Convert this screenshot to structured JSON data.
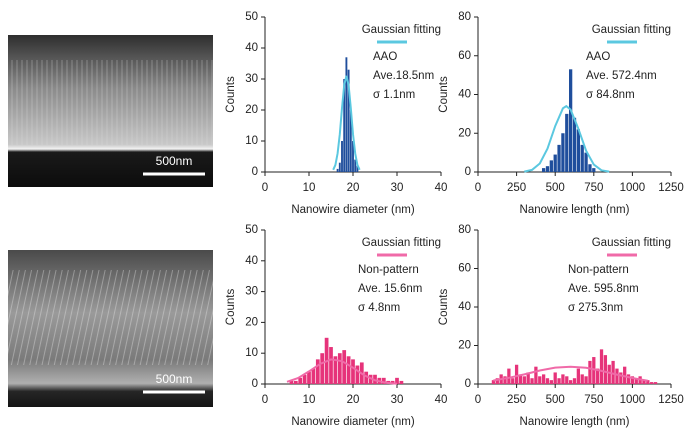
{
  "images": [
    {
      "scale_bar": "500nm"
    },
    {
      "scale_bar": "500nm"
    }
  ],
  "chart_data": [
    {
      "type": "bar",
      "xlabel": "Nanowire diameter (nm)",
      "ylabel": "Counts",
      "color": "#1f4e9c",
      "x": [
        16.5,
        17,
        17.5,
        18,
        18.5,
        19,
        19.5,
        20,
        20.5,
        21
      ],
      "values": [
        1,
        3,
        10,
        30,
        37,
        33,
        20,
        10,
        4,
        2
      ],
      "xlim": [
        0,
        40
      ],
      "xticks": [
        0,
        10,
        20,
        30,
        40
      ],
      "ylim": [
        0,
        50
      ],
      "yticks": [
        0,
        10,
        20,
        30,
        40,
        50
      ],
      "fit": {
        "name": "Gaussian fitting",
        "color": "#5bc8e0",
        "x": [
          15.5,
          16,
          16.5,
          17,
          17.5,
          18,
          18.5,
          19,
          19.5,
          20,
          20.5,
          21,
          21.5
        ],
        "values": [
          0.7,
          2.3,
          6,
          12.2,
          20.6,
          28,
          31,
          28,
          20.6,
          12.2,
          6,
          2.3,
          0.7
        ]
      },
      "annotations": [
        "AAO",
        "Ave.18.5nm",
        "σ 1.1nm"
      ]
    },
    {
      "type": "bar",
      "xlabel": "Nanowire length (nm)",
      "ylabel": "Counts",
      "color": "#1f4e9c",
      "x": [
        425,
        450,
        475,
        500,
        525,
        550,
        575,
        600,
        625,
        650,
        675,
        700,
        725,
        750
      ],
      "values": [
        2,
        3,
        6,
        9,
        14,
        20,
        30,
        53,
        28,
        22,
        14,
        10,
        4,
        2
      ],
      "xlim": [
        0,
        1250
      ],
      "xticks": [
        0,
        250,
        500,
        750,
        1000,
        1250
      ],
      "ylim": [
        0,
        80
      ],
      "yticks": [
        0,
        20,
        40,
        60,
        80
      ],
      "fit": {
        "name": "Gaussian fitting",
        "color": "#5bc8e0",
        "x": [
          300,
          350,
          400,
          450,
          500,
          550,
          572,
          600,
          650,
          700,
          750,
          800,
          850
        ],
        "values": [
          0.2,
          1.1,
          4.4,
          12.1,
          23.7,
          32.9,
          34,
          32.2,
          22.3,
          11,
          3.8,
          0.9,
          0.2
        ]
      },
      "annotations": [
        "AAO",
        "Ave. 572.4nm",
        "σ 84.8nm"
      ]
    },
    {
      "type": "bar",
      "xlabel": "Nanowire diameter (nm)",
      "ylabel": "Counts",
      "color": "#e6337a",
      "x": [
        6,
        7,
        8,
        9,
        10,
        11,
        12,
        13,
        14,
        15,
        16,
        17,
        18,
        19,
        20,
        21,
        22,
        23,
        24,
        25,
        26,
        27,
        28,
        29,
        30,
        31
      ],
      "values": [
        1,
        1,
        2,
        3,
        4,
        5,
        8,
        10,
        15,
        12,
        9,
        10,
        11,
        9,
        8,
        6,
        7,
        4,
        3,
        3,
        2,
        2,
        1,
        1,
        2,
        1
      ],
      "xlim": [
        0,
        40
      ],
      "xticks": [
        0,
        10,
        20,
        30,
        40
      ],
      "ylim": [
        0,
        50
      ],
      "yticks": [
        0,
        10,
        20,
        30,
        40,
        50
      ],
      "fit": {
        "name": "Gaussian fitting",
        "color": "#f06aa8",
        "x": [
          5,
          7.5,
          10,
          12.5,
          15,
          17.5,
          20,
          22.5,
          25,
          27.5,
          30
        ],
        "values": [
          0.7,
          1.9,
          4.1,
          6.5,
          8,
          7.4,
          5.3,
          2.9,
          1.2,
          0.4,
          0.1
        ]
      },
      "annotations": [
        "Non-pattern",
        "Ave. 15.6nm",
        "σ 4.8nm"
      ]
    },
    {
      "type": "bar",
      "xlabel": "Nanowire length (nm)",
      "ylabel": "Counts",
      "color": "#e6337a",
      "x": [
        100,
        125,
        150,
        175,
        200,
        225,
        250,
        275,
        300,
        325,
        350,
        375,
        400,
        425,
        450,
        475,
        500,
        525,
        550,
        575,
        600,
        625,
        650,
        675,
        700,
        725,
        750,
        775,
        800,
        825,
        850,
        875,
        900,
        925,
        950,
        975,
        1000,
        1025,
        1050,
        1075,
        1100,
        1125,
        1150
      ],
      "values": [
        2,
        3,
        5,
        4,
        8,
        3,
        10,
        5,
        4,
        6,
        3,
        9,
        4,
        5,
        3,
        2,
        6,
        3,
        5,
        4,
        2,
        3,
        8,
        5,
        4,
        12,
        14,
        8,
        18,
        15,
        10,
        12,
        8,
        6,
        9,
        5,
        4,
        3,
        4,
        2,
        2,
        1,
        1
      ],
      "xlim": [
        0,
        1250
      ],
      "xticks": [
        0,
        250,
        500,
        750,
        1000,
        1250
      ],
      "ylim": [
        0,
        80
      ],
      "yticks": [
        0,
        20,
        40,
        60,
        80
      ],
      "fit": {
        "name": "Gaussian fitting",
        "color": "#f06aa8",
        "x": [
          100,
          200,
          300,
          400,
          500,
          600,
          700,
          800,
          900,
          1000,
          1100
        ],
        "values": [
          1.8,
          3.2,
          5,
          7,
          8.5,
          9,
          8.4,
          6.8,
          4.9,
          3.1,
          1.7
        ]
      },
      "annotations": [
        "Non-pattern",
        "Ave. 595.8nm",
        "σ 275.3nm"
      ]
    }
  ]
}
